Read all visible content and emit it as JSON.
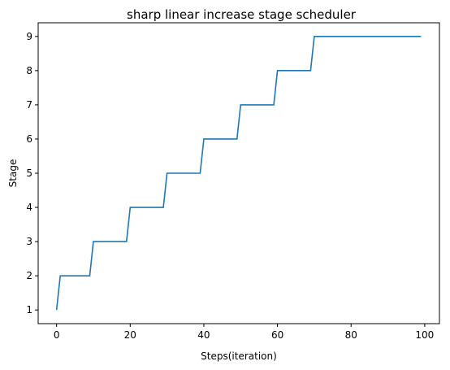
{
  "chart_data": {
    "type": "line",
    "title": "sharp linear increase stage scheduler",
    "xlabel": "Steps(iteration)",
    "ylabel": "Stage",
    "xlim": [
      -5,
      104
    ],
    "ylim": [
      0.6,
      9.4
    ],
    "xticks": [
      0,
      20,
      40,
      60,
      80,
      100
    ],
    "yticks": [
      1,
      2,
      3,
      4,
      5,
      6,
      7,
      8,
      9
    ],
    "grid": false,
    "colors": {
      "line": "#1f77b4",
      "axes": "#000000"
    },
    "series": [
      {
        "x": [
          0,
          1,
          9,
          10,
          19,
          20,
          29,
          30,
          39,
          40,
          49,
          50,
          59,
          60,
          69,
          70,
          99
        ],
        "y": [
          1,
          2,
          2,
          3,
          3,
          4,
          4,
          5,
          5,
          6,
          6,
          7,
          7,
          8,
          8,
          9,
          9
        ]
      }
    ]
  }
}
